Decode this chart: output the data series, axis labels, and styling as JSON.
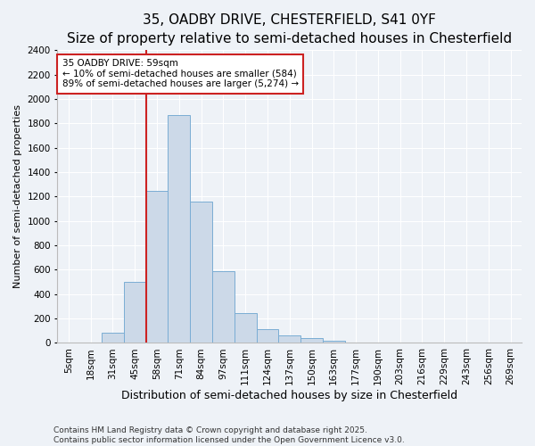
{
  "title": "35, OADBY DRIVE, CHESTERFIELD, S41 0YF",
  "subtitle": "Size of property relative to semi-detached houses in Chesterfield",
  "xlabel": "Distribution of semi-detached houses by size in Chesterfield",
  "ylabel": "Number of semi-detached properties",
  "categories": [
    "5sqm",
    "18sqm",
    "31sqm",
    "45sqm",
    "58sqm",
    "71sqm",
    "84sqm",
    "97sqm",
    "111sqm",
    "124sqm",
    "137sqm",
    "150sqm",
    "163sqm",
    "177sqm",
    "190sqm",
    "203sqm",
    "216sqm",
    "229sqm",
    "243sqm",
    "256sqm",
    "269sqm"
  ],
  "values": [
    3,
    5,
    85,
    500,
    1250,
    1870,
    1160,
    590,
    245,
    115,
    65,
    40,
    18,
    5,
    3,
    2,
    1,
    1,
    0,
    0,
    0
  ],
  "bar_color": "#ccd9e8",
  "bar_edge_color": "#7aadd4",
  "vline_x_index": 4,
  "vline_color": "#cc2222",
  "annotation_text": "35 OADBY DRIVE: 59sqm\n← 10% of semi-detached houses are smaller (584)\n89% of semi-detached houses are larger (5,274) →",
  "annotation_box_facecolor": "#ffffff",
  "annotation_box_edgecolor": "#cc2222",
  "ylim": [
    0,
    2400
  ],
  "yticks": [
    0,
    200,
    400,
    600,
    800,
    1000,
    1200,
    1400,
    1600,
    1800,
    2000,
    2200,
    2400
  ],
  "background_color": "#eef2f7",
  "plot_bg_color": "#eef2f7",
  "footer": "Contains HM Land Registry data © Crown copyright and database right 2025.\nContains public sector information licensed under the Open Government Licence v3.0.",
  "title_fontsize": 11,
  "subtitle_fontsize": 9.5,
  "xlabel_fontsize": 9,
  "ylabel_fontsize": 8,
  "tick_fontsize": 7.5,
  "footer_fontsize": 6.5,
  "annotation_fontsize": 7.5
}
